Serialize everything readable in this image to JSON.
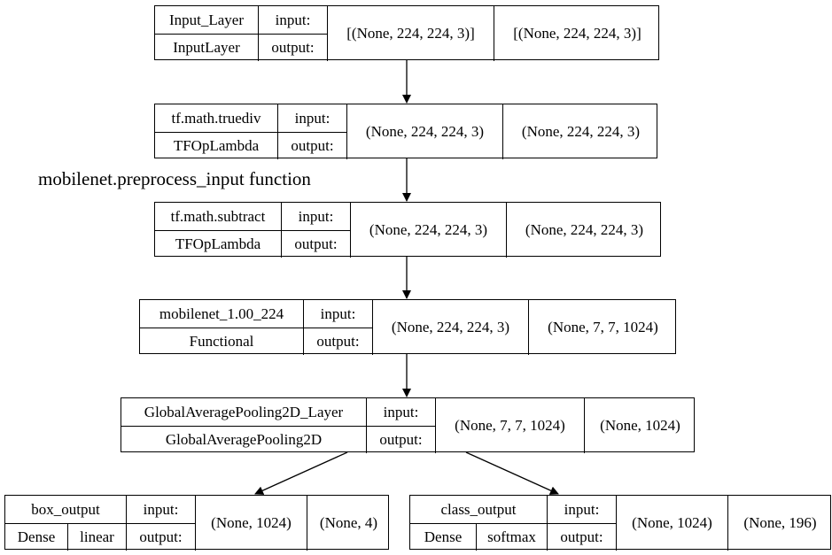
{
  "annotation": "mobilenet.preprocess_input function",
  "io_labels": {
    "input": "input:",
    "output": "output:"
  },
  "nodes": [
    {
      "id": "input_layer",
      "name": "Input_Layer",
      "type": "InputLayer",
      "input_shape": "[(None, 224, 224, 3)]",
      "output_shape": "[(None, 224, 224, 3)]"
    },
    {
      "id": "truediv",
      "name": "tf.math.truediv",
      "type": "TFOpLambda",
      "input_shape": "(None, 224, 224, 3)",
      "output_shape": "(None, 224, 224, 3)"
    },
    {
      "id": "subtract",
      "name": "tf.math.subtract",
      "type": "TFOpLambda",
      "input_shape": "(None, 224, 224, 3)",
      "output_shape": "(None, 224, 224, 3)"
    },
    {
      "id": "mobilenet",
      "name": "mobilenet_1.00_224",
      "type": "Functional",
      "input_shape": "(None, 224, 224, 3)",
      "output_shape": "(None, 7, 7, 1024)"
    },
    {
      "id": "gap",
      "name": "GlobalAveragePooling2D_Layer",
      "type": "GlobalAveragePooling2D",
      "input_shape": "(None, 7, 7, 1024)",
      "output_shape": "(None, 1024)"
    },
    {
      "id": "box_output",
      "name": "box_output",
      "type": "Dense",
      "activation": "linear",
      "input_shape": "(None, 1024)",
      "output_shape": "(None, 4)"
    },
    {
      "id": "class_output",
      "name": "class_output",
      "type": "Dense",
      "activation": "softmax",
      "input_shape": "(None, 1024)",
      "output_shape": "(None, 196)"
    }
  ],
  "edges": [
    {
      "from": "input_layer",
      "to": "truediv"
    },
    {
      "from": "truediv",
      "to": "subtract"
    },
    {
      "from": "subtract",
      "to": "mobilenet"
    },
    {
      "from": "mobilenet",
      "to": "gap"
    },
    {
      "from": "gap",
      "to": "box_output"
    },
    {
      "from": "gap",
      "to": "class_output"
    }
  ]
}
